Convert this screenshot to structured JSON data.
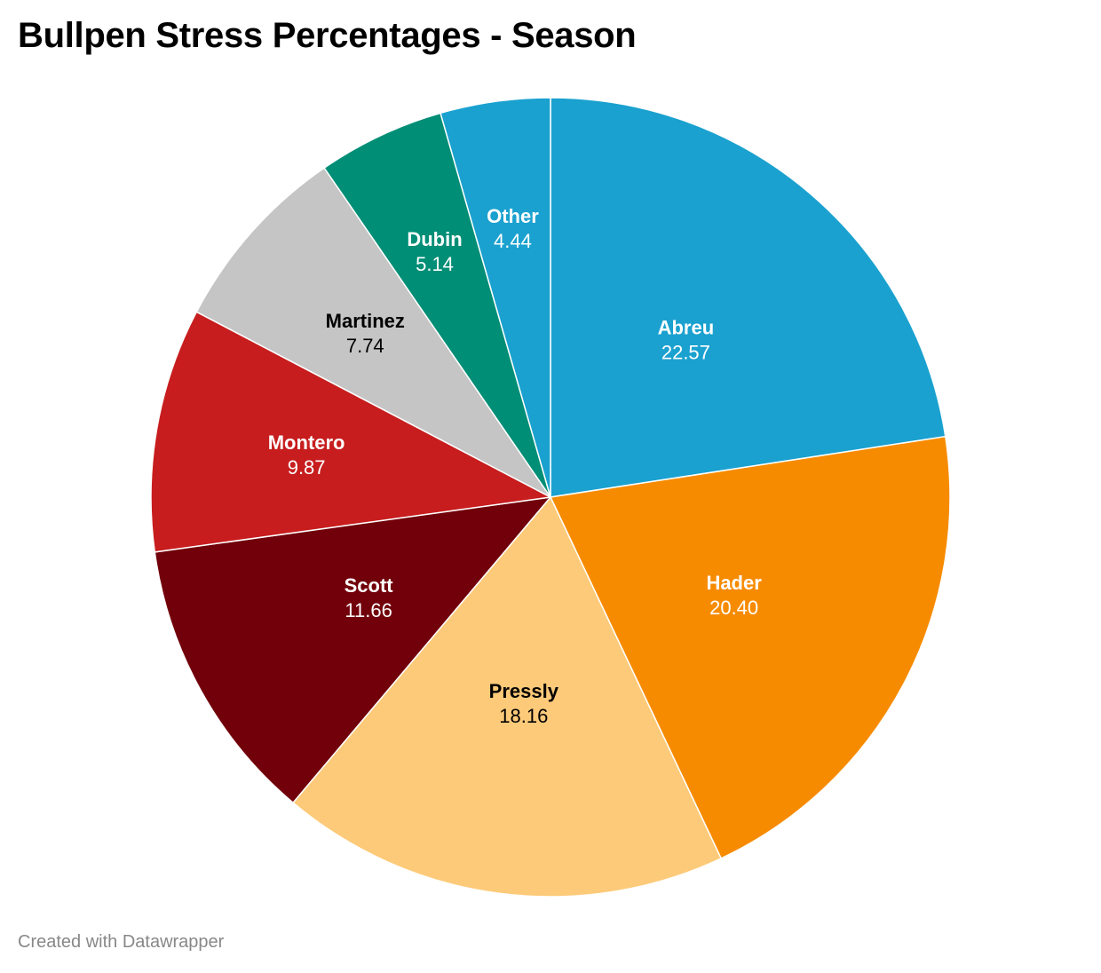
{
  "chart_data": {
    "type": "pie",
    "title": "Bullpen Stress Percentages - Season",
    "slices": [
      {
        "label": "Abreu",
        "value": 22.57,
        "display": "22.57",
        "color": "#1aa1cf",
        "text_color": "#ffffff"
      },
      {
        "label": "Hader",
        "value": 20.4,
        "display": "20.40",
        "color": "#f78b00",
        "text_color": "#ffffff"
      },
      {
        "label": "Pressly",
        "value": 18.16,
        "display": "18.16",
        "color": "#fdca79",
        "text_color": "#000000"
      },
      {
        "label": "Scott",
        "value": 11.66,
        "display": "11.66",
        "color": "#71000a",
        "text_color": "#ffffff"
      },
      {
        "label": "Montero",
        "value": 9.87,
        "display": "9.87",
        "color": "#c71d1e",
        "text_color": "#ffffff"
      },
      {
        "label": "Martinez",
        "value": 7.74,
        "display": "7.74",
        "color": "#c5c5c5",
        "text_color": "#000000"
      },
      {
        "label": "Dubin",
        "value": 5.14,
        "display": "5.14",
        "color": "#008e76",
        "text_color": "#ffffff"
      },
      {
        "label": "Other",
        "value": 4.44,
        "display": "4.44",
        "color": "#1aa1cf",
        "text_color": "#ffffff"
      }
    ]
  },
  "footer": "Created with Datawrapper"
}
